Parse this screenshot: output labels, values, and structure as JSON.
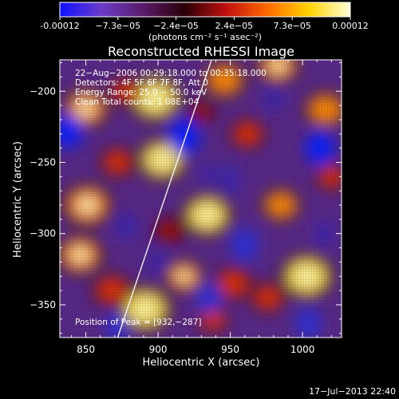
{
  "colorbar": {
    "ticks": [
      "-0.00012",
      "−7.3e−05",
      "−2.4e−05",
      "2.4e−05",
      "7.3e−05",
      "0.00012"
    ],
    "unit_label": "(photons cm⁻² s⁻¹ asec⁻²)",
    "range": [
      -0.00012,
      0.00012
    ],
    "colors": [
      "#1010ff",
      "#6a3cc8",
      "#5a1a6a",
      "#2a0008",
      "#c01010",
      "#ff6a00",
      "#ffd200",
      "#ffffd8"
    ]
  },
  "chart_data": {
    "type": "heatmap",
    "title": "Reconstructed RHESSI Image",
    "xlabel": "Heliocentric X (arcsec)",
    "ylabel": "Heliocentric Y (arcsec)",
    "xlim": [
      832,
      1027
    ],
    "ylim": [
      -373,
      -178
    ],
    "xticks": [
      850,
      900,
      950,
      1000
    ],
    "yticks": [
      -200,
      -250,
      -300,
      -350
    ],
    "annotations": [
      "22−Aug−2006 00:29:18.000 to 00:35:18.000",
      "Detectors: 4F 5F 6F 7F 8F, Att 0",
      "Energy Range: 25.0 − 50.0 keV",
      "Clean    Total counts: 1.08E+04"
    ],
    "peak_label": "Position of Peak = [932,−287]",
    "limb_line": [
      [
        872,
        -373
      ],
      [
        937,
        -178
      ]
    ],
    "blobs": [
      {
        "x": 898,
        "y": -205,
        "r": 14,
        "v": 1.0
      },
      {
        "x": 903,
        "y": -248,
        "r": 13,
        "v": 0.95
      },
      {
        "x": 850,
        "y": -212,
        "r": 12,
        "v": 0.8
      },
      {
        "x": 851,
        "y": -280,
        "r": 13,
        "v": 0.8
      },
      {
        "x": 846,
        "y": -315,
        "r": 12,
        "v": 0.85
      },
      {
        "x": 868,
        "y": -340,
        "r": 10,
        "v": 0.6
      },
      {
        "x": 891,
        "y": -353,
        "r": 14,
        "v": 0.95
      },
      {
        "x": 918,
        "y": -330,
        "r": 10,
        "v": 0.8
      },
      {
        "x": 934,
        "y": -287,
        "r": 13,
        "v": 1.0
      },
      {
        "x": 946,
        "y": -192,
        "r": 11,
        "v": 0.7
      },
      {
        "x": 983,
        "y": -182,
        "r": 11,
        "v": 0.8
      },
      {
        "x": 1016,
        "y": -213,
        "r": 11,
        "v": 0.75
      },
      {
        "x": 962,
        "y": -230,
        "r": 9,
        "v": 0.55
      },
      {
        "x": 985,
        "y": -280,
        "r": 10,
        "v": 0.75
      },
      {
        "x": 1003,
        "y": -330,
        "r": 14,
        "v": 1.0
      },
      {
        "x": 976,
        "y": -345,
        "r": 9,
        "v": 0.55
      },
      {
        "x": 952,
        "y": -335,
        "r": 10,
        "v": 0.65
      },
      {
        "x": 938,
        "y": -360,
        "r": 8,
        "v": 0.5
      },
      {
        "x": 908,
        "y": -298,
        "r": 8,
        "v": 0.45
      },
      {
        "x": 872,
        "y": -250,
        "r": 9,
        "v": 0.55
      },
      {
        "x": 1020,
        "y": -260,
        "r": 8,
        "v": 0.5
      },
      {
        "x": 877,
        "y": -200,
        "r": 8,
        "v": 0.5
      },
      {
        "x": 930,
        "y": -215,
        "r": 7,
        "v": 0.4
      },
      {
        "x": 838,
        "y": -228,
        "r": 11,
        "v": -1.0
      },
      {
        "x": 918,
        "y": -232,
        "r": 12,
        "v": -0.9
      },
      {
        "x": 1012,
        "y": -240,
        "r": 11,
        "v": -0.85
      },
      {
        "x": 950,
        "y": -262,
        "r": 9,
        "v": -0.6
      },
      {
        "x": 960,
        "y": -308,
        "r": 11,
        "v": -0.75
      },
      {
        "x": 935,
        "y": -345,
        "r": 10,
        "v": -0.75
      },
      {
        "x": 1004,
        "y": -363,
        "r": 10,
        "v": -0.75
      },
      {
        "x": 878,
        "y": -295,
        "r": 9,
        "v": -0.6
      },
      {
        "x": 872,
        "y": -365,
        "r": 9,
        "v": -0.65
      },
      {
        "x": 980,
        "y": -205,
        "r": 8,
        "v": -0.55
      },
      {
        "x": 1015,
        "y": -300,
        "r": 8,
        "v": -0.55
      },
      {
        "x": 900,
        "y": -320,
        "r": 8,
        "v": -0.5
      },
      {
        "x": 935,
        "y": -258,
        "r": 7,
        "v": -0.45
      }
    ]
  },
  "footer": {
    "timestamp": "17−Jul−2013 22:40"
  }
}
